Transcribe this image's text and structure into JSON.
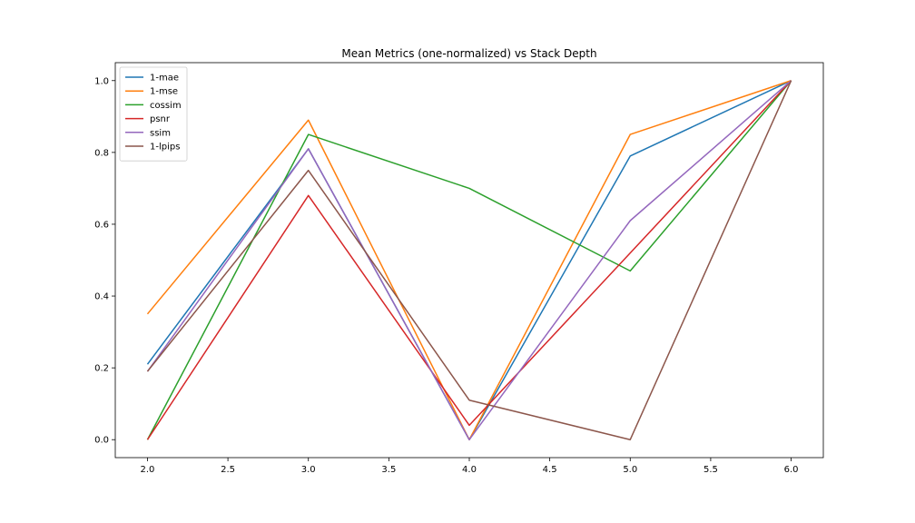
{
  "chart_data": {
    "type": "line",
    "title": "Mean Metrics (one-normalized) vs Stack Depth",
    "xlabel": "",
    "ylabel": "",
    "x": [
      2.0,
      3.0,
      4.0,
      5.0,
      6.0
    ],
    "xlim": [
      1.8,
      6.2
    ],
    "ylim": [
      -0.05,
      1.05
    ],
    "x_ticks": [
      "2.0",
      "2.5",
      "3.0",
      "3.5",
      "4.0",
      "4.5",
      "5.0",
      "5.5",
      "6.0"
    ],
    "y_ticks": [
      "0.0",
      "0.2",
      "0.4",
      "0.6",
      "0.8",
      "1.0"
    ],
    "grid": false,
    "legend_position": "top-left",
    "series": [
      {
        "name": "1-mae",
        "color": "#1f77b4",
        "values": [
          0.21,
          0.81,
          0.0,
          0.79,
          1.0
        ]
      },
      {
        "name": "1-mse",
        "color": "#ff7f0e",
        "values": [
          0.35,
          0.89,
          0.0,
          0.85,
          1.0
        ]
      },
      {
        "name": "cossim",
        "color": "#2ca02c",
        "values": [
          0.0,
          0.85,
          0.7,
          0.47,
          1.0
        ]
      },
      {
        "name": "psnr",
        "color": "#d62728",
        "values": [
          0.0,
          0.68,
          0.04,
          0.52,
          1.0
        ]
      },
      {
        "name": "ssim",
        "color": "#9467bd",
        "values": [
          0.19,
          0.81,
          0.0,
          0.61,
          1.0
        ]
      },
      {
        "name": "1-lpips",
        "color": "#8c564b",
        "values": [
          0.19,
          0.75,
          0.11,
          0.0,
          1.0
        ]
      }
    ]
  }
}
